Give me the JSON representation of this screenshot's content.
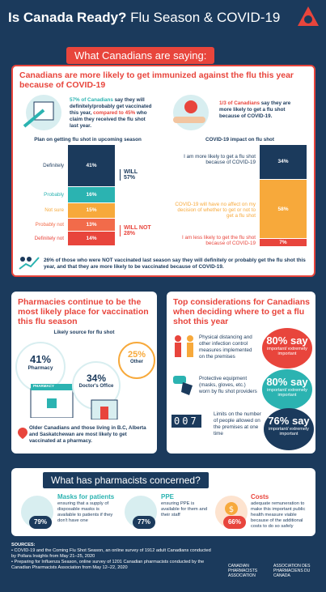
{
  "header": {
    "title_bold": "Is Canada Ready?",
    "title_rest": " Flu Season & COVID-19"
  },
  "section1": {
    "tag": "What Canadians are saying:",
    "heading": "Canadians are more likely to get immunized against the flu this year because of COVID-19",
    "left_stat_pct": "57% of Canadians",
    "left_stat_rest": " say they will definitely/probably get vaccinated this year, ",
    "left_stat_red": "compared to 45%",
    "left_stat_end": " who claim they received the flu shot last year.",
    "right_stat_pct": "1/3 of Canadians",
    "right_stat_rest": " say they are more likely to get a flu shot because of COVID-19.",
    "left_chart_title": "Plan on getting flu shot in upcoming season",
    "right_chart_title": "COVID-19 impact on flu shot",
    "will": "WILL",
    "will_val": "57%",
    "will_not": "WILL NOT",
    "will_not_val": "28%",
    "callout": "26% of those who were NOT vaccinated last season say they will definitely or probably get the flu shot this year, and that they are more likely to be vaccinated because of COVID-19."
  },
  "chart_data": [
    {
      "type": "bar",
      "title": "Plan on getting flu shot in upcoming season",
      "categories": [
        "Definitely",
        "Probably",
        "Not sure",
        "Probably not",
        "Definitely not"
      ],
      "values": [
        41,
        16,
        15,
        13,
        14
      ],
      "labels": [
        "41%",
        "16%",
        "15%",
        "13%",
        "14%"
      ],
      "colors": [
        "#1b3a5c",
        "#2bb3b1",
        "#f7a93b",
        "#f26b4a",
        "#e8453c"
      ]
    },
    {
      "type": "bar",
      "title": "COVID-19 impact on flu shot",
      "categories": [
        "I am more likely to get a flu shot because of COVID-19",
        "COVID-19 will have no affect on my decision of whether to get or not to get a flu shot",
        "I am less likely to get the flu shot because of COVID-19"
      ],
      "values": [
        34,
        58,
        7
      ],
      "labels": [
        "34%",
        "58%",
        "7%"
      ],
      "colors": [
        "#1b3a5c",
        "#f7a93b",
        "#e8453c"
      ]
    }
  ],
  "pharmacies": {
    "heading": "Pharmacies continue to be the most likely place for vaccination this flu season",
    "sub": "Likely source for flu shot",
    "p1": "41%",
    "p1_label": "Pharmacy",
    "p2": "34%",
    "p2_label": "Doctor's Office",
    "p3": "25%",
    "p3_label": "Other",
    "sign": "PHARMACY",
    "note": "Older Canadians and those living in B.C, Alberta and Saskatchewan are most likely to get vaccinated at a pharmacy."
  },
  "considerations": {
    "heading": "Top considerations for Canadians when deciding where to get a flu shot this year",
    "items": [
      {
        "text": "Physical distancing and other infection control measures implemented on the premises",
        "big": "80% say",
        "sub": "important/ extremely important"
      },
      {
        "text": "Protective equipment (masks, gloves, etc.) worn by flu shot providers",
        "big": "80% say",
        "sub": "important/ extremely important"
      },
      {
        "text": "Limits on the number of people allowed on the premises at one time",
        "big": "76% say",
        "sub": "important/ extremely important"
      }
    ],
    "counter": "007"
  },
  "concerns": {
    "tag": "What has pharmacists concerned?",
    "items": [
      {
        "title": "Masks for patients",
        "pct": "79%",
        "text": "ensuring that a supply of disposable masks is available to patients if they don't have one"
      },
      {
        "title": "PPE",
        "pct": "77%",
        "text": "ensuring PPE is available for them and their staff"
      },
      {
        "title": "Costs",
        "pct": "66%",
        "text": "adequate remuneration to make this important public health measure viable because of the additional costs to do so safely"
      }
    ]
  },
  "sources": {
    "title": "SOURCES:",
    "s1": "• COVID-19 and the Coming Flu Shot Season, an online survey of 1912 adult Canadians conducted by Pollara Insights from May 21–25, 2020",
    "s2": "• Preparing for Influenza Season, online survey of 1201 Canadian pharmacists conducted by the Canadian Pharmacists Association from May 12–22, 2020",
    "logo_en": "CANADIAN PHARMACISTS ASSOCIATION",
    "logo_fr": "ASSOCIATION DES PHARMACIENS DU CANADA"
  }
}
